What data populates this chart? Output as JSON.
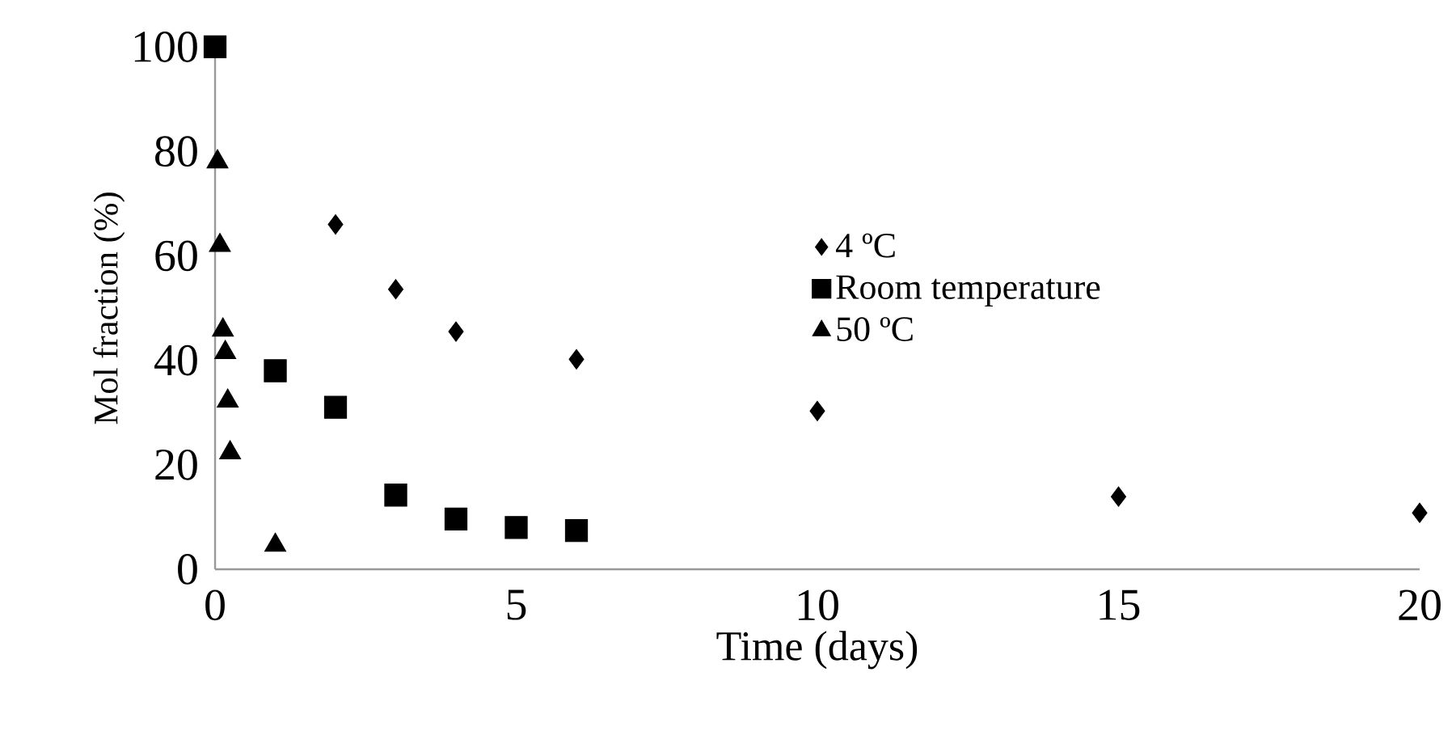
{
  "chart_data": {
    "type": "scatter",
    "xlabel": "Time (days)",
    "ylabel": "Mol fraction  (%)",
    "xlim": [
      0,
      20
    ],
    "xticks": [
      0,
      5,
      10,
      15,
      20
    ],
    "ylim": [
      0,
      100
    ],
    "yticks": [
      0,
      20,
      40,
      60,
      80,
      100
    ],
    "grid": false,
    "legend": "right",
    "series": [
      {
        "name": "4 ºC",
        "color": "#000000",
        "marker": "diamond",
        "x": [
          2,
          3,
          4,
          6,
          10,
          15,
          20
        ],
        "values": [
          66,
          53.6,
          45.5,
          40.2,
          30.3,
          13.9,
          10.8
        ]
      },
      {
        "name": "Room temperature",
        "color": "#000000",
        "marker": "square",
        "x": [
          0,
          1,
          2,
          3,
          4,
          5,
          6
        ],
        "values": [
          100,
          38,
          31,
          14.2,
          9.6,
          8,
          7.4
        ]
      },
      {
        "name": "50 ºC",
        "color": "#000000",
        "marker": "triangle",
        "x": [
          0.04,
          0.08,
          0.13,
          0.17,
          0.21,
          0.25,
          1
        ],
        "values": [
          78,
          62,
          45.8,
          41.5,
          32.2,
          22.3,
          4.6
        ]
      }
    ]
  }
}
